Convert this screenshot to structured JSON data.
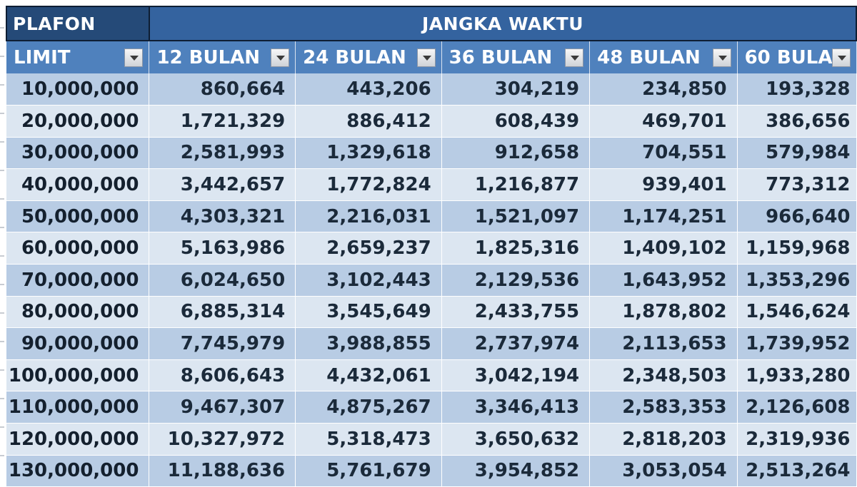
{
  "table": {
    "title_left": "PLAFON",
    "title_right": "JANGKA WAKTU",
    "columns": [
      "LIMIT",
      "12 BULAN",
      "24 BULAN",
      "36 BULAN",
      "48 BULAN",
      "60 BULA"
    ],
    "rows": [
      [
        "10,000,000",
        "860,664",
        "443,206",
        "304,219",
        "234,850",
        "193,328"
      ],
      [
        "20,000,000",
        "1,721,329",
        "886,412",
        "608,439",
        "469,701",
        "386,656"
      ],
      [
        "30,000,000",
        "2,581,993",
        "1,329,618",
        "912,658",
        "704,551",
        "579,984"
      ],
      [
        "40,000,000",
        "3,442,657",
        "1,772,824",
        "1,216,877",
        "939,401",
        "773,312"
      ],
      [
        "50,000,000",
        "4,303,321",
        "2,216,031",
        "1,521,097",
        "1,174,251",
        "966,640"
      ],
      [
        "60,000,000",
        "5,163,986",
        "2,659,237",
        "1,825,316",
        "1,409,102",
        "1,159,968"
      ],
      [
        "70,000,000",
        "6,024,650",
        "3,102,443",
        "2,129,536",
        "1,643,952",
        "1,353,296"
      ],
      [
        "80,000,000",
        "6,885,314",
        "3,545,649",
        "2,433,755",
        "1,878,802",
        "1,546,624"
      ],
      [
        "90,000,000",
        "7,745,979",
        "3,988,855",
        "2,737,974",
        "2,113,653",
        "1,739,952"
      ],
      [
        "100,000,000",
        "8,606,643",
        "4,432,061",
        "3,042,194",
        "2,348,503",
        "1,933,280"
      ],
      [
        "110,000,000",
        "9,467,307",
        "4,875,267",
        "3,346,413",
        "2,583,353",
        "2,126,608"
      ],
      [
        "120,000,000",
        "10,327,972",
        "5,318,473",
        "3,650,632",
        "2,818,203",
        "2,319,936"
      ],
      [
        "130,000,000",
        "11,188,636",
        "5,761,679",
        "3,954,852",
        "3,053,054",
        "2,513,264"
      ]
    ]
  },
  "colors": {
    "title_dark": "#254a78",
    "title_mid": "#34639f",
    "header": "#4f81bd",
    "row_dark": "#b8cce4",
    "row_light": "#dce6f1"
  },
  "icons": {
    "filter": "dropdown-arrow-icon"
  }
}
